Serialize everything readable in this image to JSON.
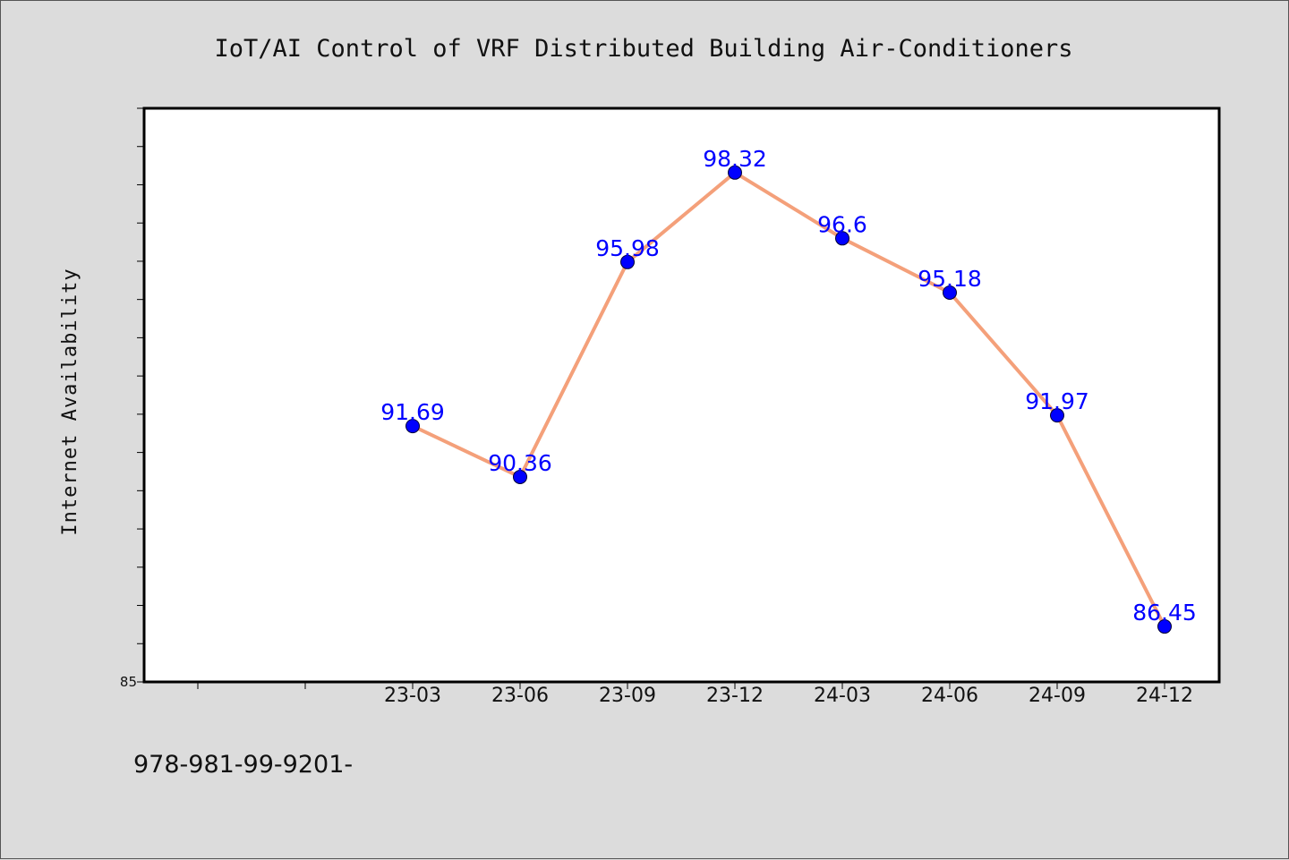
{
  "chart_data": {
    "type": "line",
    "title": "IoT/AI Control of VRF Distributed Building Air-Conditioners",
    "xlabel": "",
    "ylabel": "Internet Availability",
    "categories": [
      "23-03",
      "23-06",
      "23-09",
      "23-12",
      "24-03",
      "24-06",
      "24-09",
      "24-12"
    ],
    "series": [
      {
        "values": [
          91.69,
          90.36,
          95.98,
          98.32,
          96.6,
          95.18,
          91.97,
          86.45
        ],
        "labels": [
          "91.69",
          "90.36",
          "95.98",
          "98.32",
          "96.6",
          "95.18",
          "91.97",
          "86.45"
        ]
      }
    ],
    "ylim": [
      85,
      100
    ],
    "ytick_labels": [
      "85"
    ],
    "grid": false,
    "line_color": "#f4a07a",
    "marker_color": "#0000ff",
    "label_color": "#0000ff",
    "background_color": "#dcdcdc",
    "plot_background_color": "#ffffff"
  },
  "footer": {
    "text": "978-981-99-9201-"
  }
}
